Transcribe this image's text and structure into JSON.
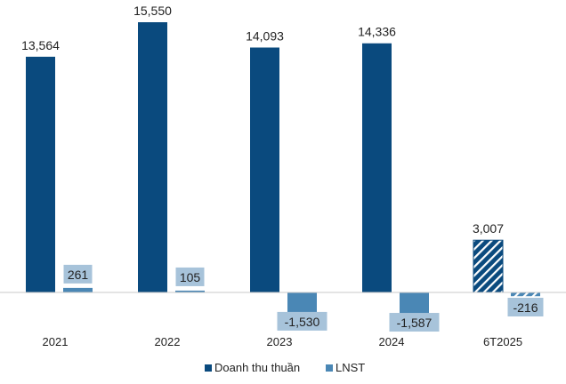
{
  "chart_data": {
    "type": "bar",
    "title": "",
    "xlabel": "",
    "ylabel": "",
    "categories": [
      "2021",
      "2022",
      "2023",
      "2024",
      "6T2025"
    ],
    "series": [
      {
        "name": "Doanh thu thuần",
        "values": [
          13564,
          15550,
          14093,
          14336,
          3007
        ],
        "labels": [
          "13,564",
          "15,550",
          "14,093",
          "14,336",
          "3,007"
        ],
        "color": "#0a4a7e"
      },
      {
        "name": "LNST",
        "values": [
          261,
          105,
          -1530,
          -1587,
          -216
        ],
        "labels": [
          "261",
          "105",
          "-1,530",
          "-1,587",
          "-216"
        ],
        "color": "#4a87b5"
      }
    ],
    "hatched_categories": [
      "6T2025"
    ],
    "label_box_color": "#a7c3da",
    "grid": false,
    "legend_position": "bottom"
  }
}
